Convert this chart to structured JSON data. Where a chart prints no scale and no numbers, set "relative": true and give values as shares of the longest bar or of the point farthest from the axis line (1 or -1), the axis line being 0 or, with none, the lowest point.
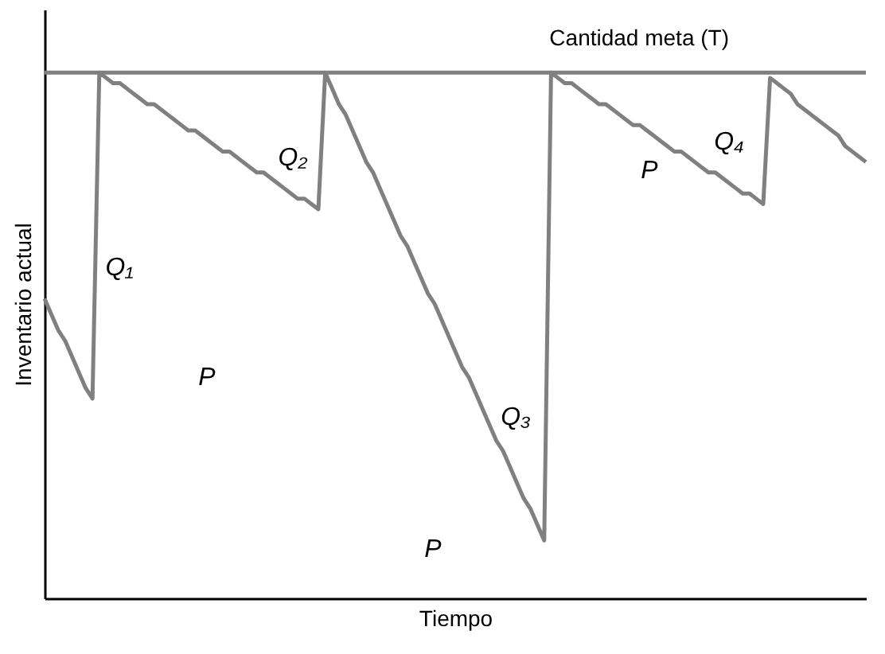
{
  "chart_data": {
    "type": "line",
    "relative": true,
    "xlabel": "Tiempo",
    "ylabel": "Inventario actual",
    "categories": [
      null,
      null,
      null,
      null,
      null,
      null,
      null,
      null,
      null,
      null,
      null,
      null,
      null,
      null,
      null,
      null,
      null,
      null,
      null,
      null,
      null,
      null,
      null,
      null,
      null,
      null,
      null,
      null,
      null,
      null,
      null,
      null,
      null,
      null,
      null,
      null,
      null,
      null,
      null,
      null,
      null,
      null,
      null,
      null,
      null,
      null,
      null,
      null,
      null,
      null,
      null,
      null,
      null,
      null,
      null,
      null,
      null,
      null,
      null,
      null,
      null,
      null,
      null,
      null,
      null,
      null,
      null,
      null,
      null,
      null,
      null,
      null,
      null,
      null,
      null,
      null,
      null,
      null,
      null,
      null,
      null,
      null,
      null,
      null,
      null,
      null,
      null,
      null,
      null,
      null,
      null,
      null,
      null,
      null,
      null,
      null,
      null,
      null,
      null,
      null,
      null,
      null,
      null,
      null,
      null,
      null,
      null,
      null,
      null,
      null,
      null,
      null,
      null,
      null,
      null,
      null,
      null,
      null,
      null,
      null,
      null
    ],
    "series": [
      {
        "color": "#808080",
        "values": [
          0.57,
          0.54,
          0.51,
          0.49,
          0.46,
          0.43,
          0.4,
          0.38,
          1.0,
          0.99,
          0.98,
          0.98,
          0.97,
          0.96,
          0.95,
          0.94,
          0.94,
          0.93,
          0.92,
          0.91,
          0.9,
          0.89,
          0.89,
          0.88,
          0.87,
          0.86,
          0.85,
          0.85,
          0.84,
          0.83,
          0.82,
          0.81,
          0.81,
          0.8,
          0.79,
          0.78,
          0.77,
          0.76,
          0.76,
          0.75,
          0.74,
          1.0,
          0.97,
          0.94,
          0.92,
          0.89,
          0.86,
          0.83,
          0.81,
          0.78,
          0.75,
          0.72,
          0.69,
          0.67,
          0.64,
          0.61,
          0.58,
          0.56,
          0.53,
          0.5,
          0.47,
          0.44,
          0.42,
          0.39,
          0.36,
          0.33,
          0.3,
          0.28,
          0.25,
          0.22,
          0.19,
          0.17,
          0.14,
          0.11,
          1.0,
          0.99,
          0.98,
          0.98,
          0.97,
          0.96,
          0.95,
          0.94,
          0.94,
          0.93,
          0.92,
          0.91,
          0.9,
          0.9,
          0.89,
          0.88,
          0.87,
          0.86,
          0.85,
          0.85,
          0.84,
          0.83,
          0.82,
          0.81,
          0.81,
          0.8,
          0.79,
          0.78,
          0.77,
          0.77,
          0.76,
          0.75,
          0.99,
          0.98,
          0.97,
          0.96,
          0.94,
          0.93,
          0.92,
          0.91,
          0.9,
          0.89,
          0.88,
          0.86,
          0.85,
          0.84,
          0.83
        ]
      }
    ],
    "ref_lines": [
      {
        "axis": "y",
        "value": 1,
        "label": "Cantidad meta (T)",
        "color": "#808080"
      }
    ],
    "annotations": [
      "Q₁",
      "Q₂",
      "Q₃",
      "Q₄",
      "P",
      "P",
      "P"
    ]
  }
}
